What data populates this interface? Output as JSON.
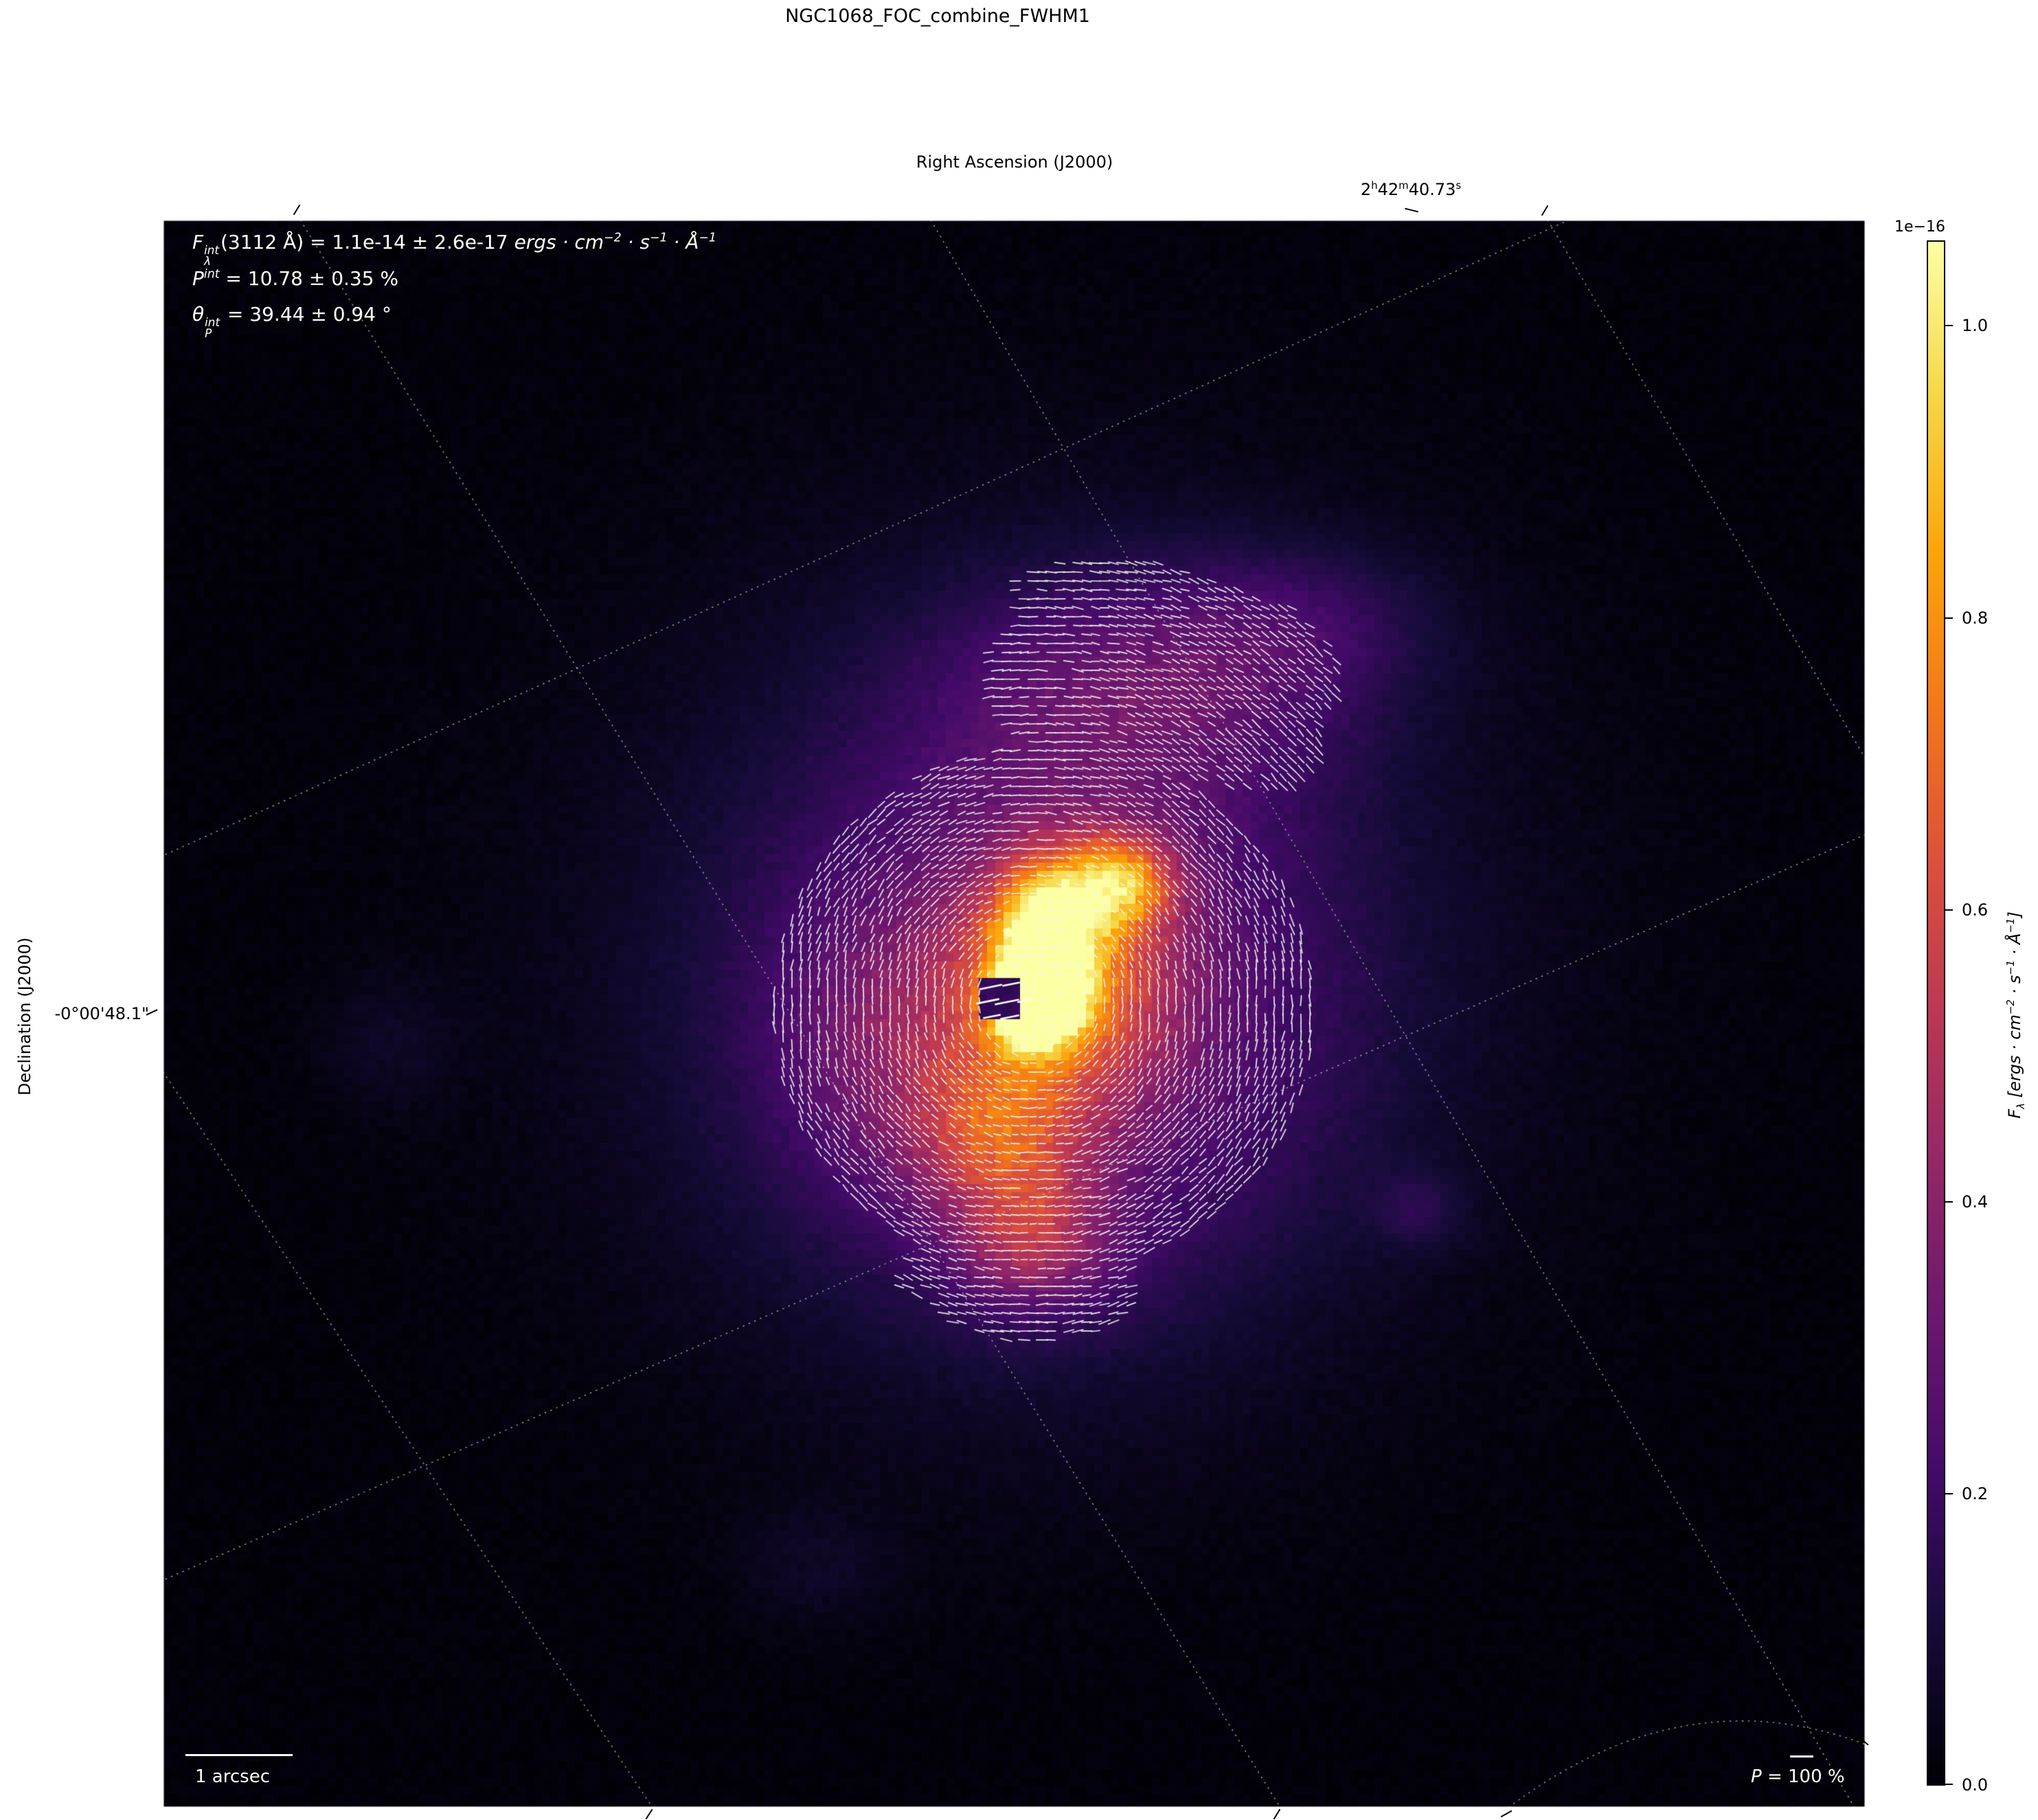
{
  "title": "NGC1068_FOC_combine_FWHM1",
  "axis": {
    "ra_label": "Right Ascension (J2000)",
    "dec_label": "Declination (J2000)",
    "dec_tick": "-0°00'48.1\"",
    "ra_tick": {
      "p1": "2",
      "s1": "h",
      "p2": "42",
      "s2": "m",
      "p3": "40.73",
      "s3": "s"
    }
  },
  "annotation": {
    "flux": {
      "sym": "F",
      "sup": "int",
      "sub": "λ",
      "body": "(3112 Å) = 1.1e-14 ± 2.6e-17 ",
      "u1": "ergs · cm",
      "e1": "−2",
      "u2": " · s",
      "e2": "−1",
      "u3": " · Å",
      "e3": "−1"
    },
    "pol": {
      "sym": "P",
      "sup": "int",
      "body": " = 10.78 ± 0.35 %"
    },
    "theta": {
      "sym": "θ",
      "sup": "int",
      "sub": "P",
      "body": " = 39.44 ± 0.94 °"
    }
  },
  "scalebar": {
    "label": "1 arcsec"
  },
  "pol_ref": {
    "sym": "P",
    "body": "= 100 %"
  },
  "colorbar": {
    "offset": "1e−16",
    "ticks": [
      "1.0",
      "0.8",
      "0.6",
      "0.4",
      "0.2",
      "0.0"
    ],
    "label": {
      "sym": "F",
      "sub": "λ",
      "u0": " [ergs · cm",
      "e1": "−2",
      "u1": " · s",
      "e2": "−1",
      "u2": " · Å",
      "e3": "−1",
      "u3": "]"
    }
  },
  "chart_data": {
    "type": "heatmap",
    "title": "NGC1068_FOC_combine_FWHM1",
    "xlabel": "Right Ascension (J2000)",
    "ylabel": "Declination (J2000)",
    "x_tick_label": "2h42m40.73s",
    "y_tick_label": "-0°00'48.1\"",
    "colormap": "inferno",
    "colorbar_label": "F_lambda [ergs cm^-2 s^-1 A^-1]",
    "colorbar_offset_scale": "1e-16",
    "colorbar_ticks": [
      0.0,
      0.2,
      0.4,
      0.6,
      0.8,
      1.0
    ],
    "colorbar_range": [
      0.0,
      1.06
    ],
    "integrated_flux": "F_int(3112 A) = 1.1e-14 ± 2.6e-17 ergs cm^-2 s^-1 A^-1",
    "integrated_polarization_percent": {
      "value": 10.78,
      "error": 0.35
    },
    "polarization_angle_deg": {
      "value": 39.44,
      "error": 0.94
    },
    "overlays": [
      "polarization pseudo-vector field (reference P = 100 %)",
      "dotted RA/Dec world-coordinate grid",
      "1 arcsec scale bar"
    ],
    "peak_flux_location": "bright yellow core left of image center",
    "legend_position": "none",
    "grid": "dotted celestial grid"
  }
}
